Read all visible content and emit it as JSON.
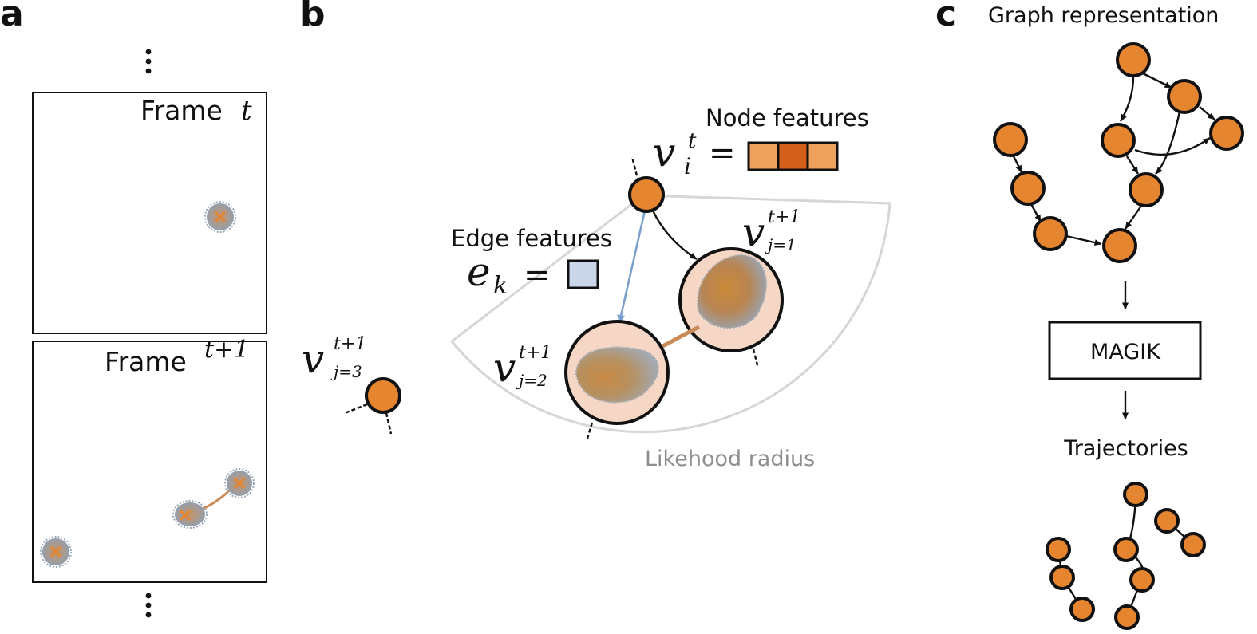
{
  "panels": {
    "a": {
      "letter": "a",
      "frame_top_label": "Frame",
      "frame_top_var": "t",
      "frame_bottom_label": "Frame",
      "frame_bottom_var": "t+1"
    },
    "b": {
      "letter": "b",
      "node_features_label": "Node features",
      "node_var": "v",
      "node_sub": "i",
      "node_sup": "t",
      "equals": "=",
      "edge_features_label": "Edge features",
      "edge_var": "e",
      "edge_sub": "k",
      "v_j1_sup": "t+1",
      "v_j1_sub": "j=1",
      "v_j2_sup": "t+1",
      "v_j2_sub": "j=2",
      "v_j3_sup": "t+1",
      "v_j3_sub": "j=3",
      "v_letter": "v",
      "radius_label": "Likehood radius"
    },
    "c": {
      "letter": "c",
      "top_label": "Graph representation",
      "box_label": "MAGIK",
      "bottom_label": "Trajectories"
    }
  },
  "colors": {
    "node_fill": "#e5852f",
    "node_feature_cells": [
      "#eda15c",
      "#d35f1d",
      "#eda15c"
    ],
    "edge_feature_cell": "#cad6ea",
    "highlight_edge": "#7b9fcc",
    "radius_sector": "#d6d6d6",
    "cell_halo": "#f6d7c6"
  },
  "icons": [
    "ellipsis-vertical-icon",
    "cell-blob-icon",
    "cross-marker-icon"
  ]
}
